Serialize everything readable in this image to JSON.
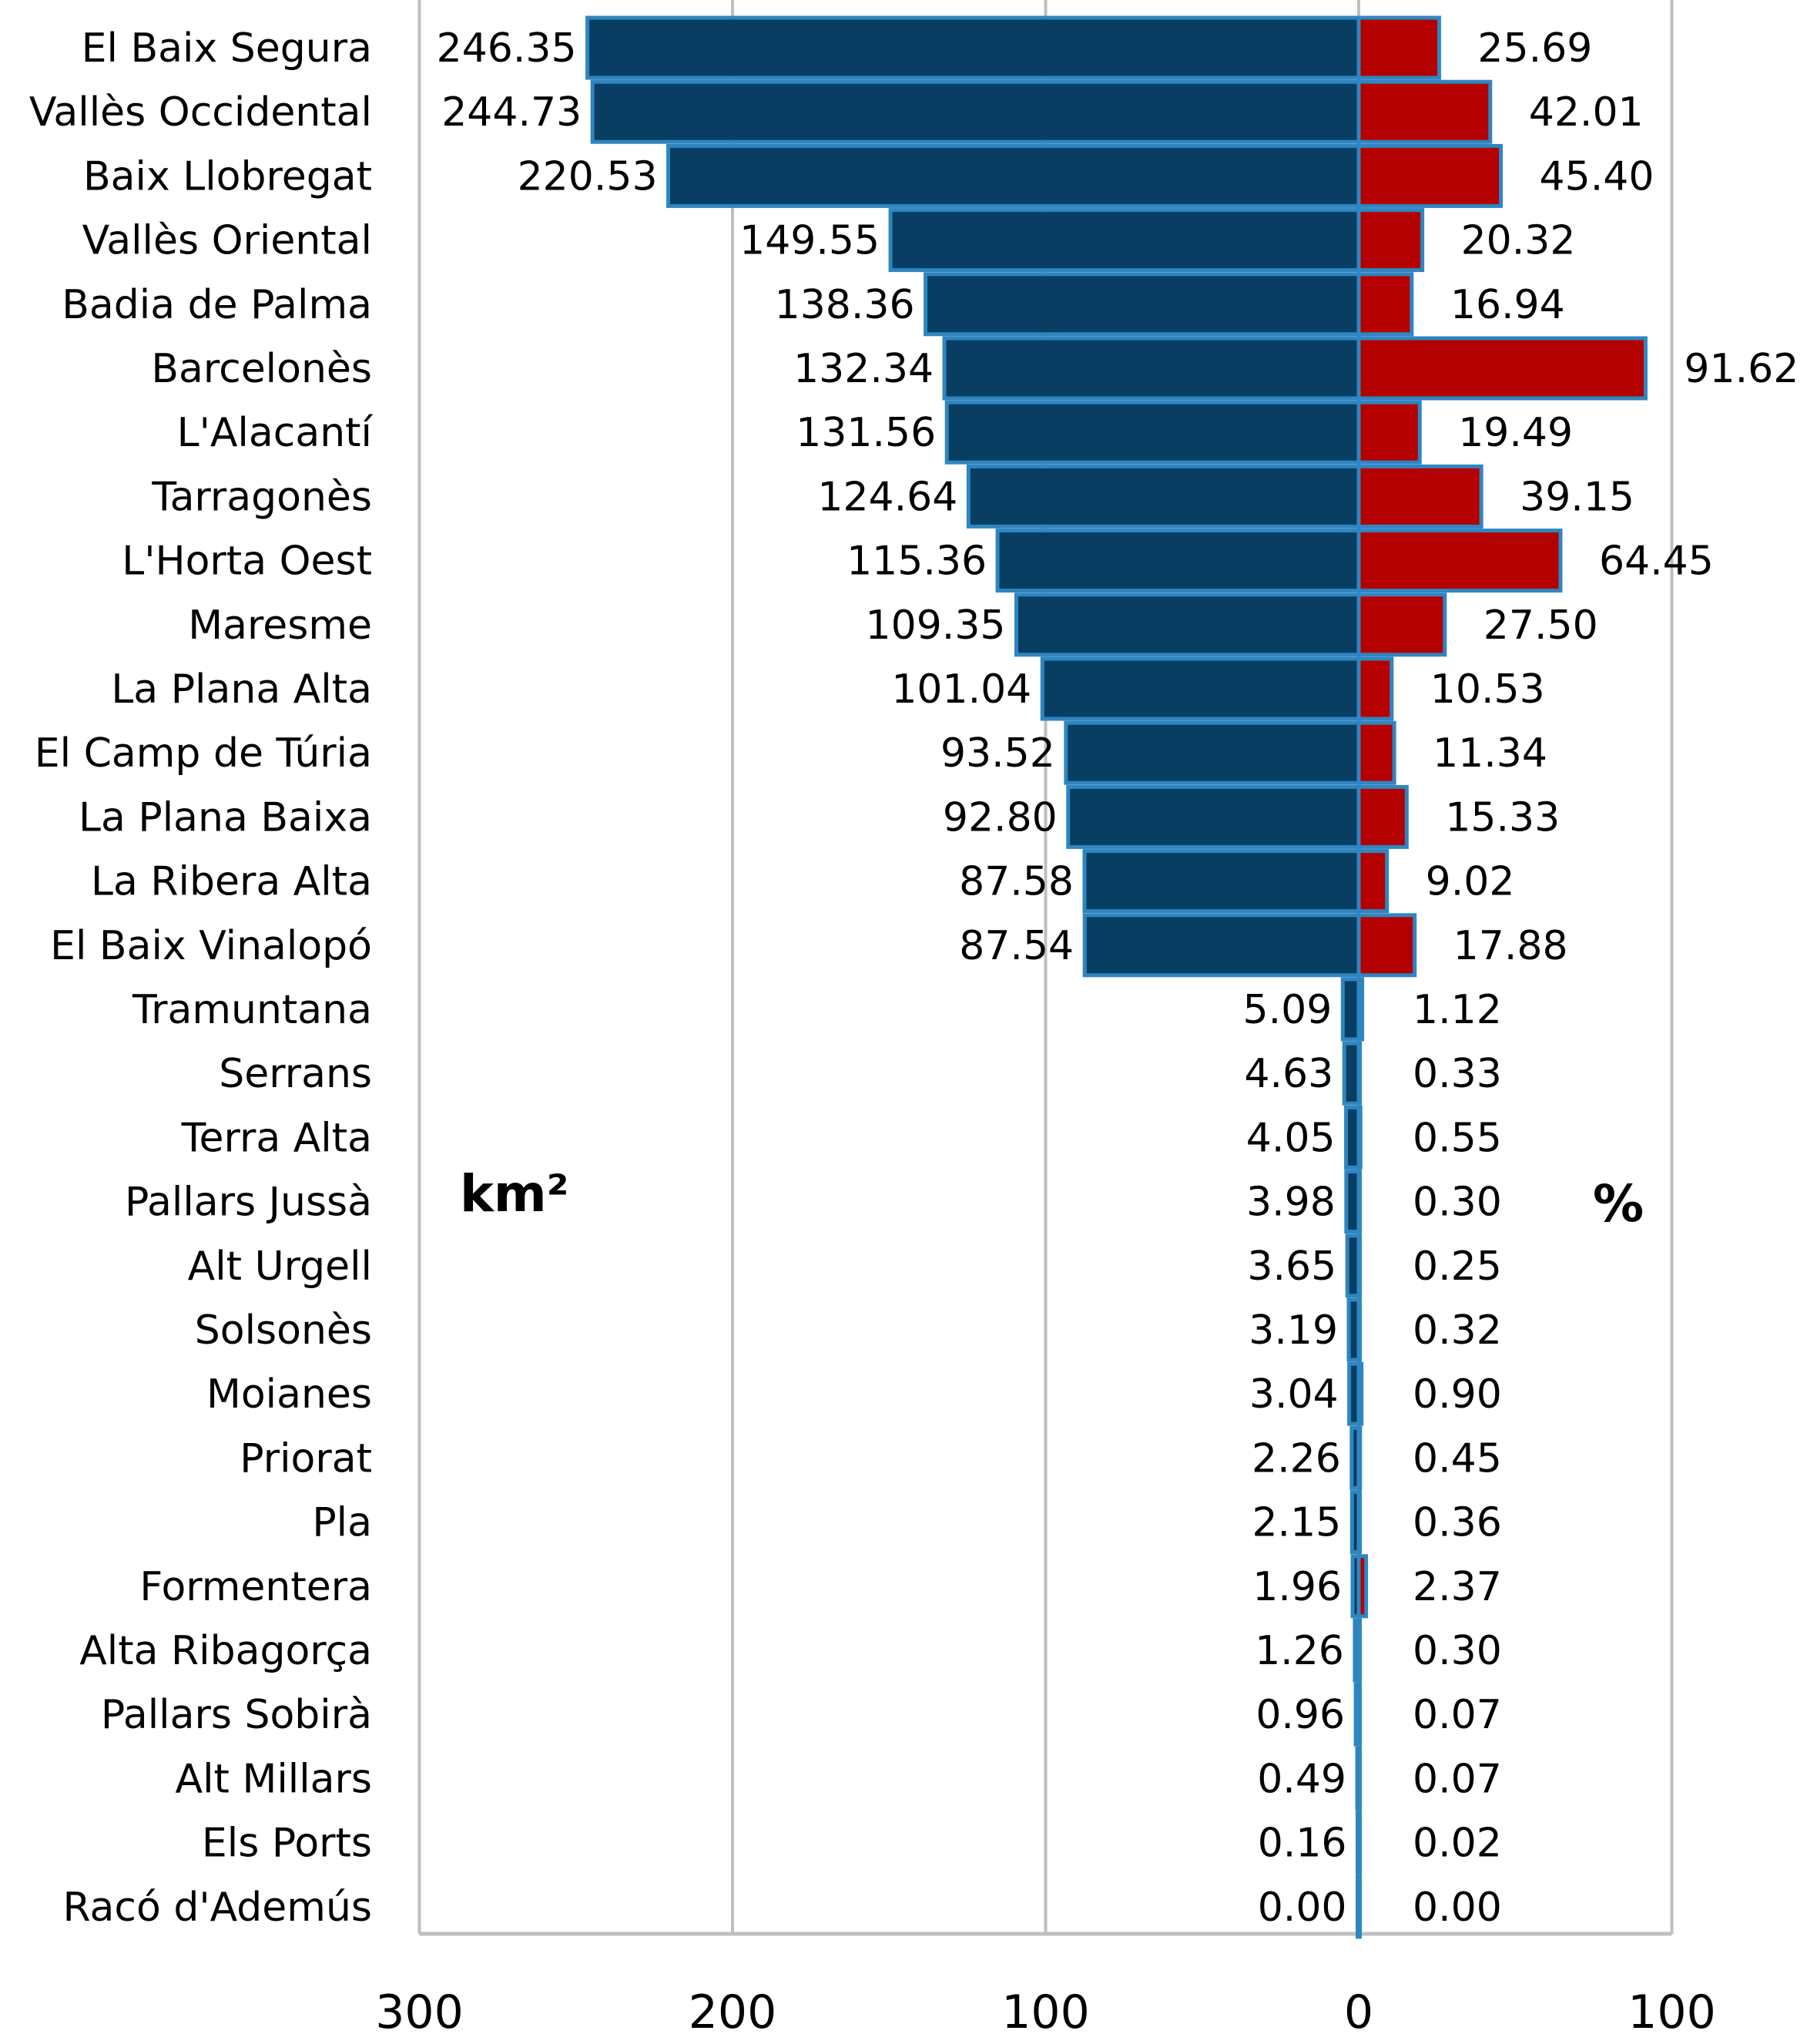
{
  "chart_data": {
    "type": "bar",
    "orientation": "horizontal",
    "layout": "back-to-back",
    "categories": [
      "El Baix Segura",
      "Vallès Occidental",
      "Baix Llobregat",
      "Vallès Oriental",
      "Badia de Palma",
      "Barcelonès",
      "L'Alacantí",
      "Tarragonès",
      "L'Horta Oest",
      "Maresme",
      "La Plana Alta",
      "El Camp de Túria",
      "La Plana Baixa",
      "La Ribera Alta",
      "El Baix Vinalopó",
      "Tramuntana",
      "Serrans",
      "Terra Alta",
      "Pallars Jussà",
      "Alt Urgell",
      "Solsonès",
      "Moianes",
      "Priorat",
      "Pla",
      "Formentera",
      "Alta Ribagorça",
      "Pallars Sobirà",
      "Alt Millars",
      "Els Ports",
      "Racó d'Ademús"
    ],
    "series": [
      {
        "name": "km²",
        "side": "left",
        "color": "#073E62",
        "edge_color": "#2E86C1",
        "values": [
          246.35,
          244.73,
          220.53,
          149.55,
          138.36,
          132.34,
          131.56,
          124.64,
          115.36,
          109.35,
          101.04,
          93.52,
          92.8,
          87.58,
          87.54,
          5.09,
          4.63,
          4.05,
          3.98,
          3.65,
          3.19,
          3.04,
          2.26,
          2.15,
          1.96,
          1.26,
          0.96,
          0.49,
          0.16,
          0.0
        ],
        "labels": [
          "246.35",
          "244.73",
          "220.53",
          "149.55",
          "138.36",
          "132.34",
          "131.56",
          "124.64",
          "115.36",
          "109.35",
          "101.04",
          "93.52",
          "92.80",
          "87.58",
          "87.54",
          "5.09",
          "4.63",
          "4.05",
          "3.98",
          "3.65",
          "3.19",
          "3.04",
          "2.26",
          "2.15",
          "1.96",
          "1.26",
          "0.96",
          "0.49",
          "0.16",
          "0.00"
        ]
      },
      {
        "name": "%",
        "side": "right",
        "color": "#B50000",
        "edge_color": "#2E86C1",
        "values": [
          25.69,
          42.01,
          45.4,
          20.32,
          16.94,
          91.62,
          19.49,
          39.15,
          64.45,
          27.5,
          10.53,
          11.34,
          15.33,
          9.02,
          17.88,
          1.12,
          0.33,
          0.55,
          0.3,
          0.25,
          0.32,
          0.9,
          0.45,
          0.36,
          2.37,
          0.3,
          0.07,
          0.07,
          0.02,
          0.0
        ],
        "labels": [
          "25.69",
          "42.01",
          "45.40",
          "20.32",
          "16.94",
          "91.62",
          "19.49",
          "39.15",
          "64.45",
          "27.50",
          "10.53",
          "11.34",
          "15.33",
          "9.02",
          "17.88",
          "1.12",
          "0.33",
          "0.55",
          "0.30",
          "0.25",
          "0.32",
          "0.90",
          "0.45",
          "0.36",
          "2.37",
          "0.30",
          "0.07",
          "0.07",
          "0.02",
          "0.00"
        ]
      }
    ],
    "left_axis": {
      "range": [
        300,
        0
      ],
      "ticks": [
        300,
        200,
        100,
        0
      ],
      "tick_labels": [
        "300",
        "200",
        "100",
        "0"
      ]
    },
    "right_axis": {
      "range": [
        0,
        100
      ],
      "ticks": [
        100
      ],
      "tick_labels": [
        "100"
      ]
    },
    "unit_left": "km²",
    "unit_right": "%",
    "grid": true,
    "grid_color": "#BFBFBF",
    "title": "",
    "xlabel": "",
    "ylabel": ""
  }
}
